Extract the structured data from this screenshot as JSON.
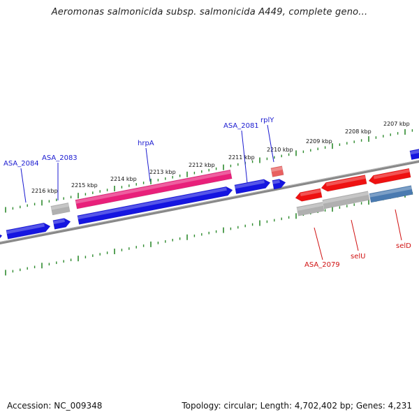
{
  "title": "Aeromonas salmonicida subsp. salmonicida A449, complete geno...",
  "footer": {
    "accession": "Accession: NC_009348",
    "summary": "Topology: circular; Length: 4,702,402 bp; Genes: 4,231"
  },
  "colors": {
    "backbone": "#888888",
    "tick": "#2e8b2e",
    "gene_fwd": "#1515e0",
    "gene_rev": "#ee1111",
    "gene_pink": "#e8207a",
    "gene_salmon": "#e86060",
    "gene_gray": "#b0b0b0",
    "gene_steel": "#4a7ab0",
    "label_fwd": "#1a1ad0",
    "label_rev": "#d01010"
  },
  "chart_data": {
    "type": "genome-map",
    "title": "Aeromonas salmonicida subsp. salmonicida A449, complete geno...",
    "region_kbp": [
      2206,
      2217
    ],
    "tick_labels": [
      "2207 kbp",
      "2208 kbp",
      "2209 kbp",
      "2210 kbp",
      "2211 kbp",
      "2212 kbp",
      "2213 kbp",
      "2214 kbp",
      "2215 kbp",
      "2216 kbp"
    ],
    "gene_labels": {
      "outer": [
        "ASA_2084",
        "ASA_2083",
        "hrpA",
        "ASA_2081",
        "rplY"
      ],
      "inner": [
        "ASA_2079",
        "selU",
        "selD"
      ]
    }
  }
}
